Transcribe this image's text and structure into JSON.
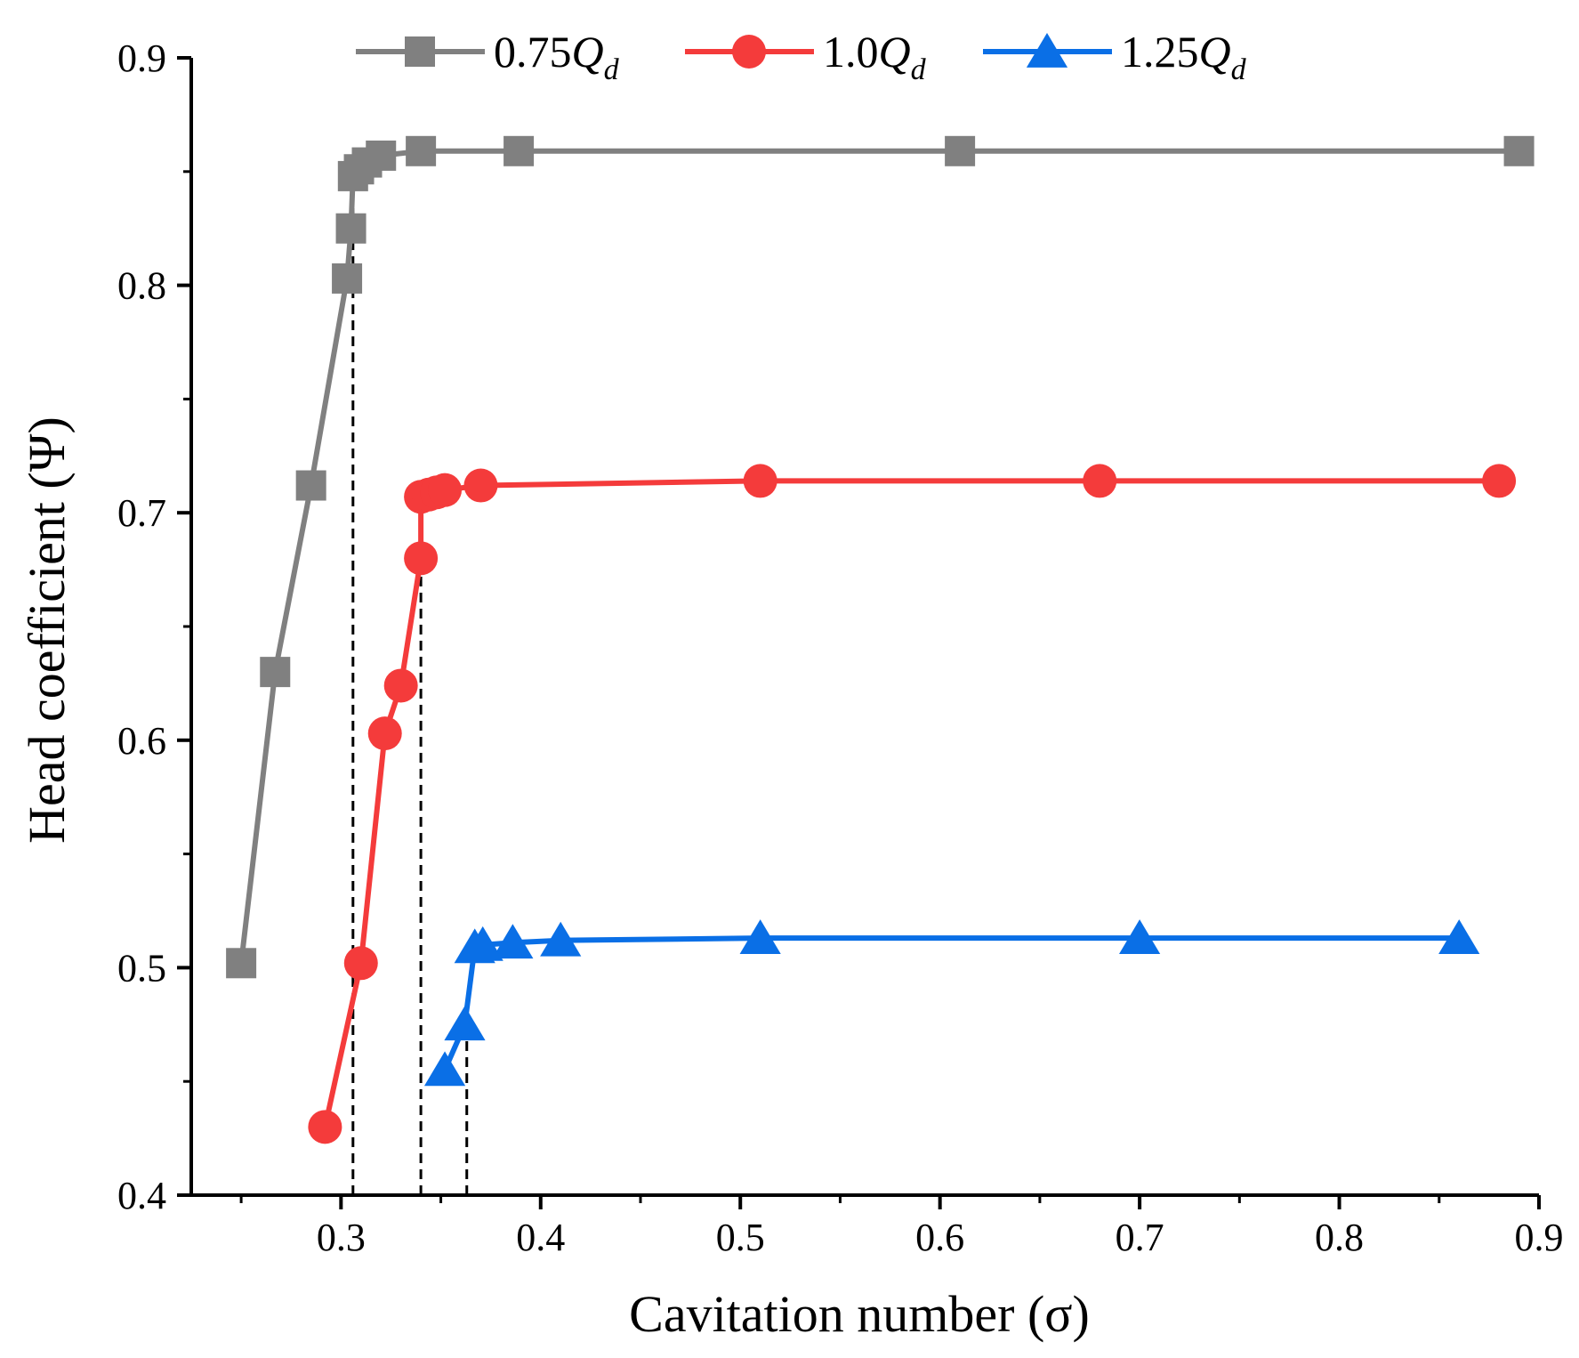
{
  "chart_data": {
    "type": "line",
    "title": "",
    "xlabel": "Cavitation number (σ)",
    "ylabel": "Head coefficient (Ψ)",
    "xlim": [
      0.225,
      0.9
    ],
    "ylim": [
      0.4,
      0.9
    ],
    "xticks": [
      0.3,
      0.4,
      0.5,
      0.6,
      0.7,
      0.8,
      0.9
    ],
    "xtick_labels": [
      "0.3",
      "0.4",
      "0.5",
      "0.6",
      "0.7",
      "0.8",
      "0.9"
    ],
    "yticks": [
      0.4,
      0.5,
      0.6,
      0.7,
      0.8,
      0.9
    ],
    "ytick_labels": [
      "0.4",
      "0.5",
      "0.6",
      "0.7",
      "0.8",
      "0.9"
    ],
    "legend_position": "top",
    "series": [
      {
        "name": "0.75Qd",
        "label_main": "0.75",
        "label_q": "Q",
        "label_sub": "d",
        "color": "#808080",
        "marker": "square",
        "x": [
          0.25,
          0.267,
          0.285,
          0.303,
          0.305,
          0.306,
          0.309,
          0.313,
          0.32,
          0.34,
          0.389,
          0.61,
          0.89
        ],
        "y": [
          0.502,
          0.63,
          0.712,
          0.803,
          0.825,
          0.848,
          0.851,
          0.854,
          0.857,
          0.859,
          0.859,
          0.859,
          0.859
        ]
      },
      {
        "name": "1.0Qd",
        "label_main": "1.0",
        "label_q": "Q",
        "label_sub": "d",
        "color": "#f43b3b",
        "marker": "circle",
        "x": [
          0.292,
          0.31,
          0.322,
          0.33,
          0.34,
          0.34,
          0.344,
          0.348,
          0.352,
          0.37,
          0.51,
          0.68,
          0.88
        ],
        "y": [
          0.43,
          0.502,
          0.603,
          0.624,
          0.68,
          0.707,
          0.708,
          0.709,
          0.71,
          0.712,
          0.714,
          0.714,
          0.714
        ]
      },
      {
        "name": "1.25Qd",
        "label_main": "1.25",
        "label_q": "Q",
        "label_sub": "d",
        "color": "#0a6fe6",
        "marker": "triangle",
        "x": [
          0.352,
          0.362,
          0.367,
          0.371,
          0.386,
          0.41,
          0.51,
          0.7,
          0.86
        ],
        "y": [
          0.455,
          0.475,
          0.509,
          0.51,
          0.511,
          0.512,
          0.513,
          0.513,
          0.513
        ]
      }
    ],
    "reference_lines": [
      {
        "x": 0.306,
        "y_top": 0.848
      },
      {
        "x": 0.34,
        "y_top": 0.707
      },
      {
        "x": 0.363,
        "y_top": 0.475
      }
    ]
  }
}
